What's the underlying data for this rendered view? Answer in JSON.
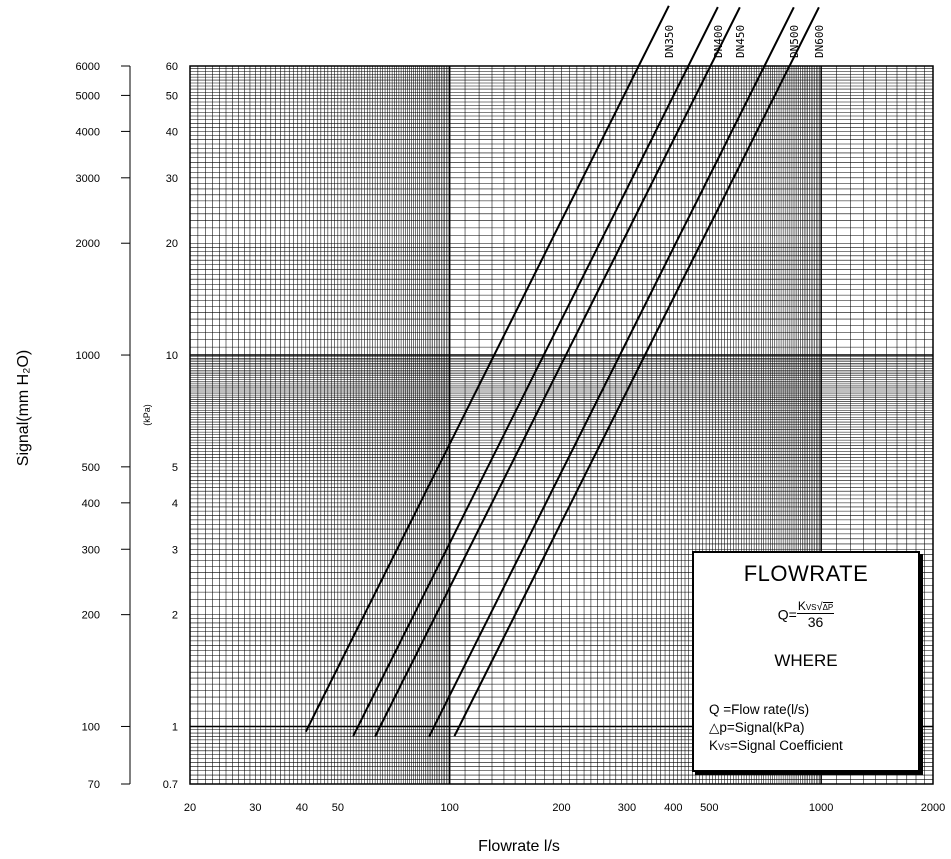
{
  "chart_data": {
    "type": "line",
    "title": "",
    "xlabel": "Flowrate l/s",
    "ylabel": "Signal(mm H₂O)",
    "secondary_y_unit": "(kPa)",
    "x_scale": "log",
    "y_scale": "log",
    "xlim": [
      20,
      2000
    ],
    "ylim_kpa": [
      0.7,
      60
    ],
    "grid": true,
    "x_ticks": [
      "20",
      "30",
      "40",
      "50",
      "100",
      "200",
      "300",
      "400",
      "500",
      "1000",
      "2000"
    ],
    "y_ticks_mmh2o": [
      "70",
      "100",
      "200",
      "300",
      "400",
      "500",
      "1000",
      "2000",
      "3000",
      "4000",
      "5000",
      "6000"
    ],
    "y_ticks_kpa": [
      "0.7",
      "1",
      "2",
      "3",
      "4",
      "5",
      "10",
      "20",
      "30",
      "40",
      "50",
      "60"
    ],
    "series": [
      {
        "name": "DN350",
        "kvs": 1500,
        "x_range": [
          41,
          389
        ]
      },
      {
        "name": "DN400",
        "kvs": 2040,
        "x_range": [
          55,
          527
        ]
      },
      {
        "name": "DN450",
        "kvs": 2340,
        "x_range": [
          63,
          604
        ]
      },
      {
        "name": "DN500",
        "kvs": 3270,
        "x_range": [
          88,
          844
        ]
      },
      {
        "name": "DN600",
        "kvs": 3820,
        "x_range": [
          103,
          986
        ]
      }
    ]
  },
  "legend": {
    "title": "FLOWRATE",
    "formula_lhs": "Q=",
    "formula_num_k": "K",
    "formula_num_sub": "VS",
    "formula_num_radicand": "ΔP",
    "formula_den": "36",
    "where": "WHERE",
    "def_q": "Q  =Flow rate(l/s)",
    "def_dp": "△p=Signal(kPa)",
    "def_kvs_k": "K",
    "def_kvs_sub": "VS",
    "def_kvs_rest": "=Signal Coefficient"
  },
  "colors": {
    "grid": "#000000",
    "line": "#000000",
    "background": "#ffffff"
  }
}
